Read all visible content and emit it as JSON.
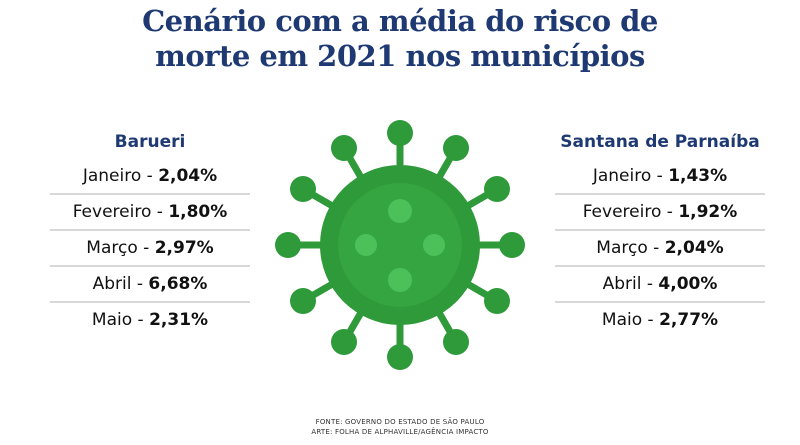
{
  "title": {
    "line1": "Cenário com a média do risco de",
    "line2": "morte em 2021 nos municípios"
  },
  "left": {
    "name": "Barueri",
    "rows": [
      {
        "month": "Janeiro",
        "value": "2,04%"
      },
      {
        "month": "Fevereiro",
        "value": "1,80%"
      },
      {
        "month": "Março",
        "value": "2,97%"
      },
      {
        "month": "Abril",
        "value": "6,68%"
      },
      {
        "month": "Maio",
        "value": "2,31%"
      }
    ]
  },
  "right": {
    "name": "Santana de Parnaíba",
    "rows": [
      {
        "month": "Janeiro",
        "value": "1,43%"
      },
      {
        "month": "Fevereiro",
        "value": "1,92%"
      },
      {
        "month": "Março",
        "value": "2,04%"
      },
      {
        "month": "Abril",
        "value": "4,00%"
      },
      {
        "month": "Maio",
        "value": "2,77%"
      }
    ]
  },
  "separator": " - ",
  "source": {
    "line1": "FONTE: GOVERNO DO ESTADO DE SÃO PAULO",
    "line2": "ARTE: FOLHA DE ALPHAVILLE/AGÊNCIA IMPACTO"
  },
  "colors": {
    "title": "#1f3a73",
    "virus_dark": "#2f9a3a",
    "virus_light": "#4cc159"
  },
  "icon": "virus-illustration"
}
